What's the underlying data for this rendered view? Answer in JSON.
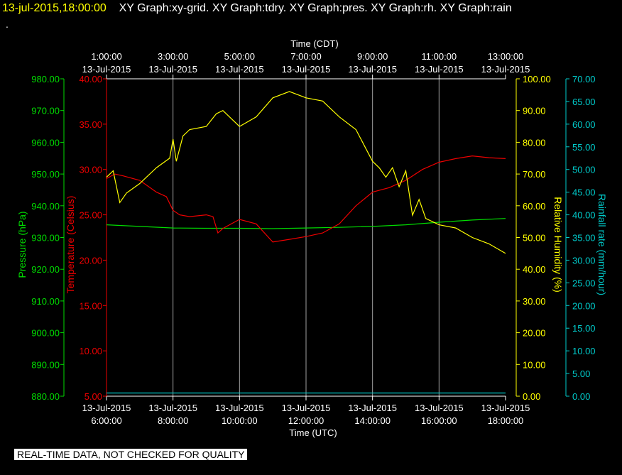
{
  "header": {
    "date": "13-jul-2015,18:00:00",
    "titles": "XY Graph:xy-grid.  XY Graph:tdry.  XY Graph:pres.  XY Graph:rh.  XY Graph:rain",
    "dot": "."
  },
  "footer": {
    "notice": "REAL-TIME DATA, NOT CHECKED FOR QUALITY"
  },
  "colors": {
    "pressure": "#00dd00",
    "temperature": "#ee0000",
    "humidity": "#ffff00",
    "rain": "#00cccc",
    "grid": "#a0a0a0",
    "frame": "#ffffff"
  },
  "chart_data": {
    "type": "line",
    "grid": true,
    "top_axis": {
      "title": "Time (CDT)",
      "ticks": [
        {
          "time": "1:00:00",
          "date": "13-Jul-2015"
        },
        {
          "time": "3:00:00",
          "date": "13-Jul-2015"
        },
        {
          "time": "5:00:00",
          "date": "13-Jul-2015"
        },
        {
          "time": "7:00:00",
          "date": "13-Jul-2015"
        },
        {
          "time": "9:00:00",
          "date": "13-Jul-2015"
        },
        {
          "time": "11:00:00",
          "date": "13-Jul-2015"
        },
        {
          "time": "13:00:00",
          "date": "13-Jul-2015"
        }
      ]
    },
    "bottom_axis": {
      "title": "Time (UTC)",
      "ticks": [
        {
          "date": "13-Jul-2015",
          "time": "6:00:00"
        },
        {
          "date": "13-Jul-2015",
          "time": "8:00:00"
        },
        {
          "date": "13-Jul-2015",
          "time": "10:00:00"
        },
        {
          "date": "13-Jul-2015",
          "time": "12:00:00"
        },
        {
          "date": "13-Jul-2015",
          "time": "14:00:00"
        },
        {
          "date": "13-Jul-2015",
          "time": "16:00:00"
        },
        {
          "date": "13-Jul-2015",
          "time": "18:00:00"
        }
      ]
    },
    "x_range_utc_hours": [
      6,
      18
    ],
    "axes": {
      "pressure": {
        "label": "Pressure (hPa)",
        "range": [
          880,
          980
        ],
        "ticks": [
          "880.00",
          "890.00",
          "900.00",
          "910.00",
          "920.00",
          "930.00",
          "940.00",
          "950.00",
          "960.00",
          "970.00",
          "980.00"
        ]
      },
      "temperature": {
        "label": "Temperature (Celsius)",
        "range": [
          5,
          40
        ],
        "ticks": [
          "5.00",
          "10.00",
          "15.00",
          "20.00",
          "25.00",
          "30.00",
          "35.00",
          "40.00"
        ]
      },
      "humidity": {
        "label": "Relative Humidity (%)",
        "range": [
          0,
          100
        ],
        "ticks": [
          "0.00",
          "10.00",
          "20.00",
          "30.00",
          "40.00",
          "50.00",
          "60.00",
          "70.00",
          "80.00",
          "90.00",
          "100.00"
        ]
      },
      "rain": {
        "label": "Rainfall rate (mm/hour)",
        "range": [
          0,
          70
        ],
        "ticks": [
          "0.00",
          "5.00",
          "10.00",
          "15.00",
          "20.00",
          "25.00",
          "30.00",
          "35.00",
          "40.00",
          "45.00",
          "50.00",
          "55.00",
          "60.00",
          "65.00",
          "70.00"
        ]
      }
    },
    "series": [
      {
        "name": "pres",
        "axis": "pressure",
        "x": [
          6.0,
          7.0,
          8.0,
          9.0,
          10.0,
          11.0,
          12.0,
          13.0,
          14.0,
          15.0,
          16.0,
          17.0,
          18.0
        ],
        "y": [
          934.0,
          933.5,
          933.0,
          932.9,
          932.9,
          932.8,
          933.0,
          933.2,
          933.5,
          934.0,
          934.8,
          935.5,
          936.0
        ]
      },
      {
        "name": "tdry",
        "axis": "temperature",
        "x": [
          6.0,
          6.25,
          6.5,
          7.0,
          7.5,
          7.8,
          8.0,
          8.2,
          8.5,
          9.0,
          9.2,
          9.35,
          9.5,
          10.0,
          10.5,
          11.0,
          11.5,
          12.0,
          12.5,
          13.0,
          13.5,
          14.0,
          14.5,
          15.0,
          15.5,
          16.0,
          16.5,
          17.0,
          17.5,
          18.0
        ],
        "y": [
          29.0,
          29.5,
          29.3,
          28.8,
          27.5,
          27.0,
          25.5,
          25.0,
          24.8,
          25.0,
          24.8,
          23.0,
          23.5,
          24.5,
          24.0,
          22.0,
          22.3,
          22.6,
          23.0,
          24.0,
          26.0,
          27.5,
          28.0,
          28.8,
          30.0,
          30.8,
          31.2,
          31.5,
          31.3,
          31.2
        ]
      },
      {
        "name": "rh",
        "axis": "humidity",
        "x": [
          6.0,
          6.2,
          6.4,
          6.6,
          7.0,
          7.5,
          7.9,
          8.0,
          8.1,
          8.3,
          8.5,
          9.0,
          9.3,
          9.5,
          10.0,
          10.5,
          11.0,
          11.5,
          12.0,
          12.5,
          13.0,
          13.5,
          13.8,
          14.0,
          14.2,
          14.4,
          14.6,
          14.8,
          15.0,
          15.2,
          15.4,
          15.6,
          16.0,
          16.5,
          17.0,
          17.5,
          18.0
        ],
        "y": [
          69.0,
          71.0,
          61.0,
          64.0,
          67.0,
          72.0,
          75.0,
          81.0,
          74.0,
          82.0,
          84.0,
          85.0,
          89.0,
          90.0,
          85.0,
          88.0,
          94.0,
          96.0,
          94.0,
          93.0,
          88.0,
          84.0,
          78.0,
          74.0,
          72.0,
          69.0,
          72.0,
          66.0,
          71.0,
          57.0,
          62.0,
          56.0,
          54.0,
          53.0,
          50.0,
          48.0,
          45.0
        ]
      },
      {
        "name": "rain",
        "axis": "rain",
        "x": [
          6.0,
          18.0
        ],
        "y": [
          0.7,
          0.7
        ]
      }
    ]
  }
}
